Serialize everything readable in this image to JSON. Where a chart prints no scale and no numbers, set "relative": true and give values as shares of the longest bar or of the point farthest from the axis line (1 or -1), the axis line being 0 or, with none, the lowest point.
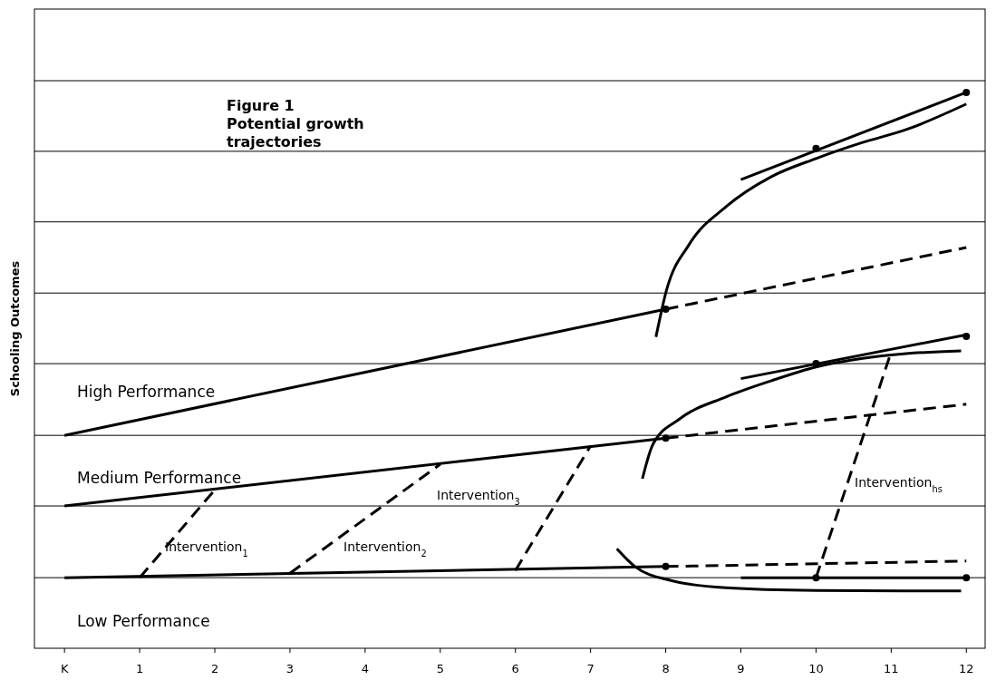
{
  "chart_data": {
    "type": "line",
    "title": "Figure 1",
    "subtitle": "Potential growth trajectories",
    "ylabel": "Schooling Outcomes",
    "relative": true,
    "xlim": [
      -0.4,
      12.25
    ],
    "xticks": [
      {
        "value": 0,
        "label": "K"
      },
      1,
      2,
      3,
      4,
      5,
      6,
      7,
      8,
      9,
      10,
      11,
      12
    ],
    "ref_lines": [
      {
        "axis": "y",
        "value": 0.127,
        "color": "#000000"
      },
      {
        "axis": "y",
        "value": 0.256,
        "color": "#000000"
      },
      {
        "axis": "y",
        "value": 0.383,
        "color": "#000000"
      },
      {
        "axis": "y",
        "value": 0.512,
        "color": "#000000"
      },
      {
        "axis": "y",
        "value": 0.639,
        "color": "#000000"
      },
      {
        "axis": "y",
        "value": 0.767,
        "color": "#000000"
      },
      {
        "axis": "y",
        "value": 0.894,
        "color": "#000000"
      },
      {
        "axis": "y",
        "value": 1.021,
        "color": "#000000"
      }
    ],
    "series": [
      {
        "color": "#000000",
        "line_style": "solid",
        "x": [
          0,
          8
        ],
        "values": [
          0.127,
          0.147
        ]
      },
      {
        "color": "#000000",
        "line_style": "solid",
        "x": [
          0,
          8
        ],
        "values": [
          0.256,
          0.378
        ]
      },
      {
        "color": "#000000",
        "line_style": "solid",
        "x": [
          0,
          8
        ],
        "values": [
          0.383,
          0.61
        ]
      },
      {
        "color": "#000000",
        "line_style": "dashed",
        "x": [
          8,
          12
        ],
        "values": [
          0.61,
          0.721
        ]
      },
      {
        "color": "#000000",
        "line_style": "dashed",
        "x": [
          8,
          12
        ],
        "values": [
          0.378,
          0.439
        ]
      },
      {
        "color": "#000000",
        "line_style": "dashed",
        "x": [
          8,
          12
        ],
        "values": [
          0.147,
          0.157
        ]
      },
      {
        "color": "#000000",
        "line_style": "solid",
        "x": [
          9,
          12
        ],
        "values": [
          0.843,
          1.0
        ]
      },
      {
        "color": "#000000",
        "line_style": "solid",
        "x": [
          7.87,
          8.01,
          8.31,
          8.8,
          9.4,
          10,
          10.6,
          11.2,
          12
        ],
        "values": [
          0.56,
          0.644,
          0.726,
          0.794,
          0.848,
          0.881,
          0.909,
          0.933,
          0.979
        ]
      },
      {
        "color": "#000000",
        "line_style": "solid",
        "x": [
          9,
          12
        ],
        "values": [
          0.485,
          0.564
        ]
      },
      {
        "color": "#000000",
        "line_style": "solid",
        "x": [
          7.69,
          7.83,
          8.19,
          8.8,
          9.4,
          10,
          10.6,
          11.2,
          11.93
        ],
        "values": [
          0.305,
          0.367,
          0.413,
          0.452,
          0.481,
          0.506,
          0.521,
          0.53,
          0.535
        ]
      },
      {
        "color": "#000000",
        "line_style": "solid",
        "x": [
          9,
          12
        ],
        "values": [
          0.127,
          0.127
        ]
      },
      {
        "color": "#000000",
        "line_style": "solid",
        "x": [
          7.35,
          7.59,
          8.07,
          8.8,
          10,
          11.2,
          11.93
        ],
        "values": [
          0.179,
          0.147,
          0.122,
          0.109,
          0.104,
          0.103,
          0.103
        ]
      },
      {
        "color": "#000000",
        "line_style": "dashed",
        "x": [
          1,
          2
        ],
        "values": [
          0.127,
          0.285
        ]
      },
      {
        "color": "#000000",
        "line_style": "dashed",
        "x": [
          3,
          5
        ],
        "values": [
          0.135,
          0.331
        ]
      },
      {
        "color": "#000000",
        "line_style": "dashed",
        "x": [
          6,
          7
        ],
        "values": [
          0.14,
          0.364
        ]
      },
      {
        "color": "#000000",
        "line_style": "dashed",
        "x": [
          10,
          11
        ],
        "values": [
          0.127,
          0.533
        ]
      },
      {
        "type": "scatter",
        "color": "#000000",
        "marker": "circle",
        "x": [
          8,
          10,
          12,
          8,
          10,
          12,
          8,
          10,
          12
        ],
        "values": [
          0.61,
          0.899,
          1.0,
          0.378,
          0.512,
          0.561,
          0.147,
          0.127,
          0.127
        ]
      }
    ],
    "annotations": [
      "High Performance",
      "Medium Performance",
      "Low Performance",
      "Intervention$_{1}$",
      "Intervention$_{2}$",
      "Intervention$_{3}$",
      "Intervention$_{hs}$"
    ]
  }
}
